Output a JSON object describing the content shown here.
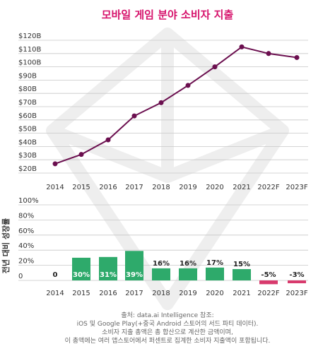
{
  "title": "모바일 게임 분야 소비자 지출",
  "colors": {
    "title": "#d6126b",
    "line": "#6b0f4f",
    "bar_positive": "#2eaa6b",
    "bar_negative": "#d83a6d",
    "bar_label": "#ffffff",
    "grid": "#c7c7c7"
  },
  "chart_data": [
    {
      "type": "line",
      "x": [
        "2014",
        "2015",
        "2016",
        "2017",
        "2018",
        "2019",
        "2020",
        "2021",
        "2022F",
        "2023F"
      ],
      "values": [
        27,
        34,
        45,
        63,
        73,
        86,
        100,
        115,
        110,
        107
      ],
      "ylim": [
        20,
        120
      ],
      "yticks": [
        "$20B",
        "$30B",
        "$40B",
        "$50B",
        "$60B",
        "$70B",
        "$80B",
        "$90B",
        "$100B",
        "$110B",
        "$120B"
      ],
      "marker": "circle",
      "grid": true
    },
    {
      "type": "bar",
      "categories": [
        "2014",
        "2015",
        "2016",
        "2017",
        "2018",
        "2019",
        "2020",
        "2021",
        "2022F",
        "2023F"
      ],
      "values": [
        0,
        30,
        31,
        39,
        16,
        16,
        17,
        15,
        -5,
        -3
      ],
      "labels": [
        "0",
        "30%",
        "31%",
        "39%",
        "16%",
        "16%",
        "17%",
        "15%",
        "-5%",
        "-3%"
      ],
      "ylabel": "전년 대비 성장률",
      "ylim": [
        0,
        100
      ],
      "yticks": [
        "0",
        "20%",
        "40%",
        "60%",
        "80%",
        "100%"
      ],
      "grid": true
    }
  ],
  "source": {
    "line1": "출처: data.ai Intelligence 참조:",
    "line2": "iOS 및 Google Play(+중국 Android 스토어의 서드 파티 데이터).",
    "line3": "소비자 지출 총액은 총 합산으로 계산한 금액이며,",
    "line4": "이 총액에는 여러 앱스토어에서 퍼센트로 집계한 소비자 지출액이 포함됩니다."
  }
}
